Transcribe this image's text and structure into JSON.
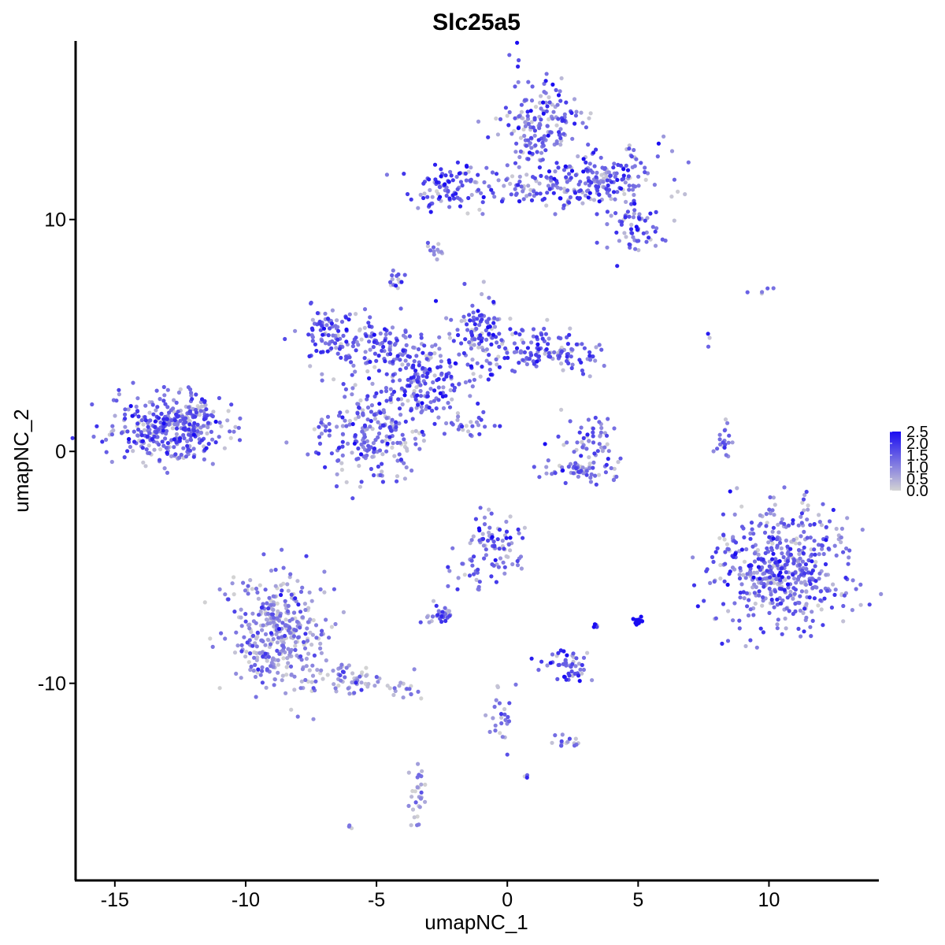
{
  "chart_data": {
    "type": "scatter",
    "title": "Slc25a5",
    "xlabel": "umapNC_1",
    "ylabel": "umapNC_2",
    "xlim": [
      -16.5,
      14.2
    ],
    "ylim": [
      -18.5,
      17.7
    ],
    "x_ticks": [
      -15,
      -10,
      -5,
      0,
      5,
      10
    ],
    "x_tick_labels": [
      "-15",
      "-10",
      "-5",
      "0",
      "5",
      "10"
    ],
    "y_ticks": [
      -10,
      0,
      10
    ],
    "y_tick_labels": [
      "-10",
      "0",
      "10"
    ],
    "grid": false,
    "legend_position": "right",
    "color_scale": {
      "low_color": "#d3d3d3",
      "high_color": "#1a0cf2",
      "min": 0.0,
      "max": 2.5,
      "breaks": [
        0.0,
        0.5,
        1.0,
        1.5,
        2.0,
        2.5
      ],
      "break_labels": [
        "0.0",
        "0.5",
        "1.0",
        "1.5",
        "2.0",
        "2.5"
      ]
    },
    "clusters": [
      {
        "cx": -13.0,
        "cy": 1.0,
        "sx": 1.0,
        "sy": 0.7,
        "n": 320,
        "expr": 1.35
      },
      {
        "cx": -11.8,
        "cy": 1.6,
        "sx": 0.5,
        "sy": 0.5,
        "n": 60,
        "expr": 1.45
      },
      {
        "cx": -5.5,
        "cy": 4.6,
        "sx": 1.0,
        "sy": 0.7,
        "n": 120,
        "expr": 1.4
      },
      {
        "cx": -6.8,
        "cy": 5.3,
        "sx": 0.5,
        "sy": 0.5,
        "n": 50,
        "expr": 1.5
      },
      {
        "cx": -3.5,
        "cy": 3.2,
        "sx": 1.0,
        "sy": 1.0,
        "n": 200,
        "expr": 1.55
      },
      {
        "cx": -1.0,
        "cy": 5.2,
        "sx": 0.6,
        "sy": 0.9,
        "n": 110,
        "expr": 1.55
      },
      {
        "cx": 1.5,
        "cy": 4.3,
        "sx": 1.2,
        "sy": 0.5,
        "n": 130,
        "expr": 1.45
      },
      {
        "cx": -5.3,
        "cy": 0.7,
        "sx": 1.0,
        "sy": 1.0,
        "n": 220,
        "expr": 1.3
      },
      {
        "cx": -4.3,
        "cy": 7.4,
        "sx": 0.2,
        "sy": 0.2,
        "n": 15,
        "expr": 1.45
      },
      {
        "cx": -1.5,
        "cy": 1.2,
        "sx": 0.6,
        "sy": 0.3,
        "n": 25,
        "expr": 1.2
      },
      {
        "cx": 1.3,
        "cy": 14.0,
        "sx": 0.8,
        "sy": 1.0,
        "n": 180,
        "expr": 1.3
      },
      {
        "cx": 3.6,
        "cy": 11.6,
        "sx": 1.3,
        "sy": 0.7,
        "n": 200,
        "expr": 1.4
      },
      {
        "cx": 4.9,
        "cy": 9.5,
        "sx": 0.6,
        "sy": 0.5,
        "n": 60,
        "expr": 1.3
      },
      {
        "cx": -2.2,
        "cy": 11.4,
        "sx": 0.7,
        "sy": 0.5,
        "n": 90,
        "expr": 1.55
      },
      {
        "cx": 0.8,
        "cy": 11.3,
        "sx": 1.2,
        "sy": 0.4,
        "n": 60,
        "expr": 1.45
      },
      {
        "cx": -2.7,
        "cy": 8.6,
        "sx": 0.15,
        "sy": 0.2,
        "n": 12,
        "expr": 1.4
      },
      {
        "cx": 3.2,
        "cy": 0.5,
        "sx": 0.5,
        "sy": 0.6,
        "n": 50,
        "expr": 1.35
      },
      {
        "cx": 3.0,
        "cy": -0.8,
        "sx": 0.8,
        "sy": 0.25,
        "n": 60,
        "expr": 1.2
      },
      {
        "cx": 8.3,
        "cy": 0.5,
        "sx": 0.2,
        "sy": 0.6,
        "n": 20,
        "expr": 1.3
      },
      {
        "cx": 10.6,
        "cy": -5.0,
        "sx": 1.2,
        "sy": 1.3,
        "n": 500,
        "expr": 1.25
      },
      {
        "cx": 8.1,
        "cy": -4.5,
        "sx": 0.2,
        "sy": 0.4,
        "n": 15,
        "expr": 1.4
      },
      {
        "cx": -0.5,
        "cy": -4.0,
        "sx": 0.6,
        "sy": 0.6,
        "n": 80,
        "expr": 1.3
      },
      {
        "cx": -1.4,
        "cy": -5.4,
        "sx": 0.4,
        "sy": 0.5,
        "n": 20,
        "expr": 1.2
      },
      {
        "cx": -2.6,
        "cy": -7.0,
        "sx": 0.35,
        "sy": 0.2,
        "n": 30,
        "expr": 1.3
      },
      {
        "cx": -8.8,
        "cy": -7.8,
        "sx": 0.9,
        "sy": 1.2,
        "n": 360,
        "expr": 0.85
      },
      {
        "cx": -6.2,
        "cy": -9.8,
        "sx": 0.9,
        "sy": 0.4,
        "n": 70,
        "expr": 0.7
      },
      {
        "cx": -4.0,
        "cy": -10.3,
        "sx": 0.4,
        "sy": 0.2,
        "n": 15,
        "expr": 0.6
      },
      {
        "cx": 5.0,
        "cy": -7.3,
        "sx": 0.1,
        "sy": 0.1,
        "n": 15,
        "expr": 2.4
      },
      {
        "cx": 3.4,
        "cy": -7.5,
        "sx": 0.05,
        "sy": 0.05,
        "n": 5,
        "expr": 2.3
      },
      {
        "cx": 2.3,
        "cy": -9.3,
        "sx": 0.4,
        "sy": 0.4,
        "n": 50,
        "expr": 1.45
      },
      {
        "cx": 2.3,
        "cy": -12.5,
        "sx": 0.3,
        "sy": 0.2,
        "n": 15,
        "expr": 1.3
      },
      {
        "cx": -0.3,
        "cy": -11.3,
        "sx": 0.25,
        "sy": 0.8,
        "n": 25,
        "expr": 1.1
      },
      {
        "cx": -3.4,
        "cy": -14.8,
        "sx": 0.2,
        "sy": 0.8,
        "n": 30,
        "expr": 0.7
      },
      {
        "cx": -6.0,
        "cy": -16.2,
        "sx": 0.05,
        "sy": 0.05,
        "n": 3,
        "expr": 1.3
      },
      {
        "cx": 9.5,
        "cy": 6.9,
        "sx": 0.4,
        "sy": 0.1,
        "n": 5,
        "expr": 1.4
      },
      {
        "cx": 7.7,
        "cy": 4.8,
        "sx": 0.1,
        "sy": 0.2,
        "n": 3,
        "expr": 1.3
      },
      {
        "cx": 0.7,
        "cy": -14.0,
        "sx": 0.05,
        "sy": 0.05,
        "n": 3,
        "expr": 1.2
      }
    ]
  }
}
